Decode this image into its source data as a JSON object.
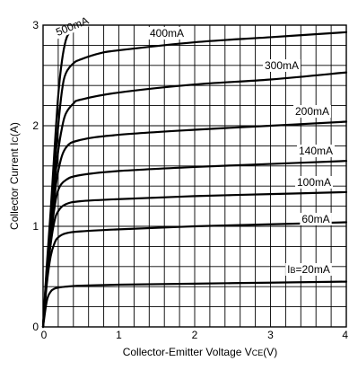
{
  "chart_data": {
    "type": "line",
    "title": "",
    "xlabel": "Collector-Emitter Voltage VCE(V)",
    "ylabel": "Collector Current IC(A)",
    "xlabel_parts": [
      {
        "text": "Collector-Emitter Voltage V",
        "small": false
      },
      {
        "text": "CE",
        "small": true
      },
      {
        "text": "(V)",
        "small": false
      }
    ],
    "ylabel_parts": [
      {
        "text": "Collector Current I",
        "small": false
      },
      {
        "text": "C",
        "small": true
      },
      {
        "text": "(A)",
        "small": false
      }
    ],
    "xlim": [
      0,
      4
    ],
    "ylim": [
      0,
      3
    ],
    "x_ticks": [
      "0",
      "1",
      "2",
      "3",
      "4"
    ],
    "y_ticks": [
      "0",
      "1",
      "2",
      "3"
    ],
    "x_tick_values": [
      0,
      1,
      2,
      3,
      4
    ],
    "y_tick_values": [
      0,
      1,
      2,
      3
    ],
    "grid": true,
    "x_minor_divisions": 20,
    "y_minor_divisions": 15,
    "series": [
      {
        "name": "IB=20mA",
        "label_parts": [
          {
            "text": "I",
            "small": false
          },
          {
            "text": "B",
            "small": true
          },
          {
            "text": "=20mA",
            "small": false
          }
        ],
        "x": [
          0,
          0.05,
          0.1,
          0.15,
          0.2,
          0.3,
          0.5,
          1,
          2,
          3,
          4
        ],
        "y": [
          0,
          0.26,
          0.35,
          0.38,
          0.39,
          0.4,
          0.41,
          0.42,
          0.43,
          0.44,
          0.45
        ]
      },
      {
        "name": "60mA",
        "label_parts": [
          {
            "text": "60mA",
            "small": false
          }
        ],
        "x": [
          0,
          0.05,
          0.1,
          0.15,
          0.2,
          0.3,
          0.5,
          1,
          2,
          3,
          4
        ],
        "y": [
          0,
          0.43,
          0.7,
          0.83,
          0.89,
          0.93,
          0.95,
          0.97,
          1.0,
          1.02,
          1.04
        ]
      },
      {
        "name": "100mA",
        "label_parts": [
          {
            "text": "100mA",
            "small": false
          }
        ],
        "x": [
          0,
          0.05,
          0.1,
          0.15,
          0.2,
          0.3,
          0.5,
          1,
          2,
          3,
          4
        ],
        "y": [
          0,
          0.47,
          0.82,
          1.05,
          1.15,
          1.22,
          1.25,
          1.27,
          1.3,
          1.32,
          1.34
        ]
      },
      {
        "name": "140mA",
        "label_parts": [
          {
            "text": "140mA",
            "small": false
          }
        ],
        "x": [
          0,
          0.05,
          0.1,
          0.15,
          0.2,
          0.3,
          0.5,
          1,
          2,
          3,
          4
        ],
        "y": [
          0,
          0.5,
          0.88,
          1.18,
          1.36,
          1.46,
          1.51,
          1.55,
          1.59,
          1.62,
          1.65
        ]
      },
      {
        "name": "200mA",
        "label_parts": [
          {
            "text": "200mA",
            "small": false
          }
        ],
        "x": [
          0,
          0.05,
          0.1,
          0.15,
          0.2,
          0.3,
          0.5,
          1,
          2,
          3,
          4
        ],
        "y": [
          0,
          0.52,
          0.92,
          1.28,
          1.55,
          1.78,
          1.86,
          1.91,
          1.96,
          2.0,
          2.04
        ]
      },
      {
        "name": "300mA",
        "label_parts": [
          {
            "text": "300mA",
            "small": false
          }
        ],
        "x": [
          0,
          0.05,
          0.1,
          0.15,
          0.2,
          0.25,
          0.3,
          0.4,
          0.5,
          1,
          2,
          3,
          4
        ],
        "y": [
          0,
          0.55,
          0.98,
          1.4,
          1.75,
          1.98,
          2.12,
          2.22,
          2.26,
          2.33,
          2.41,
          2.46,
          2.53
        ]
      },
      {
        "name": "400mA",
        "label_parts": [
          {
            "text": "400mA",
            "small": false
          }
        ],
        "x": [
          0,
          0.05,
          0.1,
          0.15,
          0.2,
          0.25,
          0.3,
          0.4,
          0.5,
          0.75,
          1,
          2,
          3,
          4
        ],
        "y": [
          0,
          0.58,
          1.05,
          1.55,
          2.0,
          2.35,
          2.52,
          2.62,
          2.66,
          2.72,
          2.75,
          2.83,
          2.88,
          2.93
        ]
      },
      {
        "name": "500mA",
        "label_parts": [
          {
            "text": "500mA",
            "small": false
          }
        ],
        "x": [
          0,
          0.05,
          0.1,
          0.15,
          0.2,
          0.25,
          0.3,
          0.35,
          0.4,
          0.5
        ],
        "y": [
          0,
          0.62,
          1.15,
          1.75,
          2.3,
          2.65,
          2.85,
          2.93,
          2.97,
          3.0
        ]
      }
    ]
  }
}
